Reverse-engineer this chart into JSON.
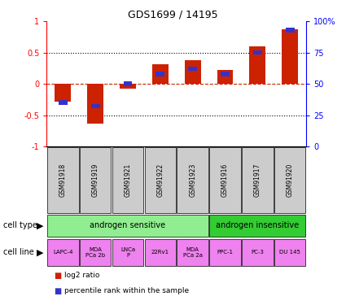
{
  "title": "GDS1699 / 14195",
  "samples": [
    "GSM91918",
    "GSM91919",
    "GSM91921",
    "GSM91922",
    "GSM91923",
    "GSM91916",
    "GSM91917",
    "GSM91920"
  ],
  "log2_ratio": [
    -0.28,
    -0.63,
    -0.07,
    0.32,
    0.38,
    0.22,
    0.6,
    0.87
  ],
  "percentile_rank": [
    35,
    32,
    50,
    58,
    62,
    58,
    75,
    93
  ],
  "cell_type_groups": [
    {
      "label": "androgen sensitive",
      "start": 0,
      "end": 5,
      "color": "#90ee90"
    },
    {
      "label": "androgen insensitive",
      "start": 5,
      "end": 8,
      "color": "#33cc33"
    }
  ],
  "cell_lines": [
    "LAPC-4",
    "MDA\nPCa 2b",
    "LNCa\nP",
    "22Rv1",
    "MDA\nPCa 2a",
    "PPC-1",
    "PC-3",
    "DU 145"
  ],
  "cell_line_color": "#ee82ee",
  "sample_label_color": "#cccccc",
  "bar_color_red": "#cc2200",
  "bar_color_blue": "#3333cc",
  "ylim_left": [
    -1.0,
    1.0
  ],
  "ylim_right": [
    0,
    100
  ],
  "yticks_left": [
    -1,
    -0.5,
    0,
    0.5,
    1
  ],
  "ytick_labels_left": [
    "-1",
    "-0.5",
    "0",
    "0.5",
    "1"
  ],
  "yticks_right": [
    0,
    25,
    50,
    75,
    100
  ],
  "ytick_labels_right": [
    "0",
    "25",
    "50",
    "75",
    "100%"
  ],
  "dotted_lines": [
    -0.5,
    0.5
  ],
  "legend_red": "log2 ratio",
  "legend_blue": "percentile rank within the sample",
  "bar_width": 0.5
}
